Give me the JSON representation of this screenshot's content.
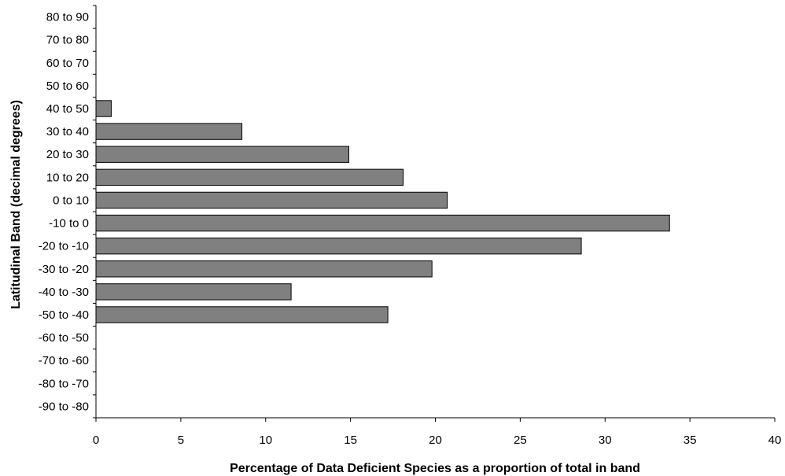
{
  "chart_data": {
    "type": "bar",
    "orientation": "horizontal",
    "categories": [
      "80 to 90",
      "70 to 80",
      "60 to 70",
      "50 to 60",
      "40 to 50",
      "30 to 40",
      "20 to 30",
      "10 to 20",
      "0 to 10",
      "-10 to 0",
      "-20 to -10",
      "-30 to -20",
      "-40 to -30",
      "-50 to -40",
      "-60 to -50",
      "-70 to -60",
      "-80 to -70",
      "-90 to -80"
    ],
    "values": [
      0,
      0,
      0,
      0,
      0.9,
      8.6,
      14.9,
      18.1,
      20.7,
      33.8,
      28.6,
      19.8,
      11.5,
      17.2,
      0,
      0,
      0,
      0
    ],
    "xlabel": "Percentage of Data Deficient Species as a proportion of total in band",
    "ylabel": "Latitudinal Band (decimal degrees)",
    "xlim": [
      0,
      40
    ],
    "xticks": [
      "0",
      "5",
      "10",
      "15",
      "20",
      "25",
      "30",
      "35",
      "40"
    ],
    "grid": false,
    "colors": {
      "bar_fill": "#808080",
      "bar_stroke": "#000000"
    }
  }
}
